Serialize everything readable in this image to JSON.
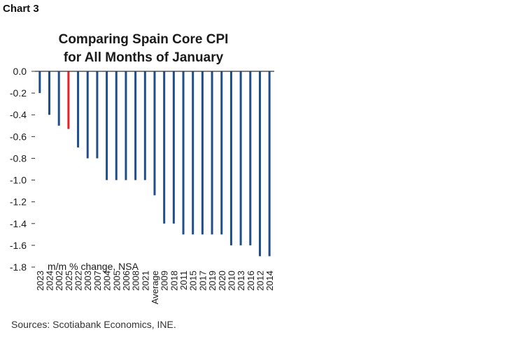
{
  "header": {
    "chart_label": "Chart 3"
  },
  "footer": {
    "source": "Sources: Scotiabank Economics, INE."
  },
  "colors": {
    "bar": "#1f4e8c",
    "highlight": "#e8202a",
    "axis": "#333333",
    "text": "#1a1a1a"
  },
  "chart_data": {
    "type": "bar",
    "title_lines": [
      "Comparing Spain Core CPI",
      "for All Months of January"
    ],
    "annotation": "m/m % change, NSA",
    "categories": [
      "2023",
      "2024",
      "2002",
      "2025",
      "2022",
      "2003",
      "2007",
      "2004",
      "2005",
      "2006",
      "2008",
      "2021",
      "Average",
      "2009",
      "2018",
      "2011",
      "2015",
      "2017",
      "2019",
      "2020",
      "2010",
      "2013",
      "2016",
      "2012",
      "2014"
    ],
    "values": [
      -0.2,
      -0.4,
      -0.5,
      -0.53,
      -0.7,
      -0.8,
      -0.8,
      -1.0,
      -1.0,
      -1.0,
      -1.0,
      -1.0,
      -1.14,
      -1.4,
      -1.4,
      -1.5,
      -1.5,
      -1.5,
      -1.5,
      -1.5,
      -1.6,
      -1.6,
      -1.6,
      -1.7,
      -1.7
    ],
    "highlight_category": "2025",
    "ylim": [
      -1.8,
      0.0
    ],
    "yticks": [
      "0.0",
      "-0.2",
      "-0.4",
      "-0.6",
      "-0.8",
      "-1.0",
      "-1.2",
      "-1.4",
      "-1.6",
      "-1.8"
    ],
    "grid": false,
    "legend": "none",
    "xlabel": "",
    "ylabel": ""
  }
}
